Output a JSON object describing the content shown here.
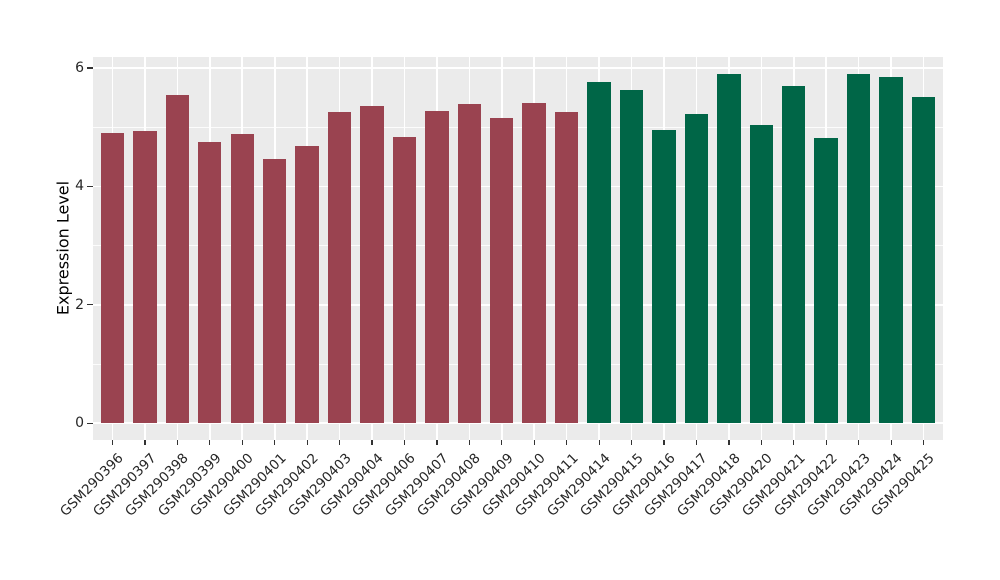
{
  "chart_data": {
    "type": "bar",
    "title": "",
    "xlabel": "",
    "ylabel": "Expression Level",
    "categories": [
      "GSM290396",
      "GSM290397",
      "GSM290398",
      "GSM290399",
      "GSM290400",
      "GSM290401",
      "GSM290402",
      "GSM290403",
      "GSM290404",
      "GSM290406",
      "GSM290407",
      "GSM290408",
      "GSM290409",
      "GSM290410",
      "GSM290411",
      "GSM290414",
      "GSM290415",
      "GSM290416",
      "GSM290417",
      "GSM290418",
      "GSM290420",
      "GSM290421",
      "GSM290422",
      "GSM290423",
      "GSM290424",
      "GSM290425"
    ],
    "values": [
      4.9,
      4.94,
      5.54,
      4.75,
      4.89,
      4.47,
      4.68,
      5.26,
      5.35,
      4.84,
      5.28,
      5.39,
      5.15,
      5.41,
      5.26,
      5.77,
      5.63,
      4.95,
      5.22,
      5.9,
      5.04,
      5.7,
      4.82,
      5.89,
      5.84,
      5.51
    ],
    "group_split_index": 15,
    "group_colors": [
      "#9A4350",
      "#006647"
    ],
    "yticks": [
      0,
      2,
      4,
      6
    ],
    "minor_gridlines": [
      1,
      3,
      5
    ],
    "ylim": [
      -0.3,
      6.2
    ],
    "grid_on": true,
    "legend_position": "none",
    "panel_bg": "#EBEBEB",
    "grid_color": "#FFFFFF",
    "axis_text_color": "#262626",
    "tick_color": "#333333"
  }
}
